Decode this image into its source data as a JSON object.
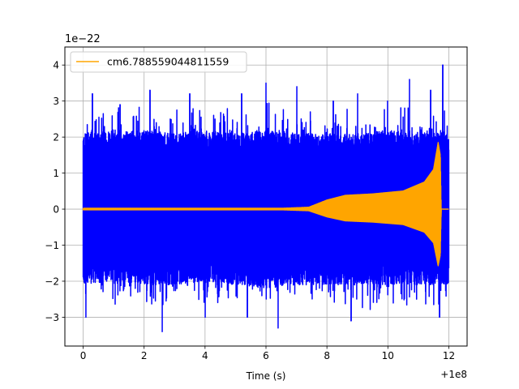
{
  "chart_data": {
    "type": "line",
    "title": "",
    "xlabel": "Time (s)",
    "ylabel": "",
    "x_offset_label": "+1e8",
    "y_scale_label": "1e−22",
    "xlim": [
      -0.6,
      12.6
    ],
    "ylim": [
      -3.8,
      4.5
    ],
    "x_ticks": [
      0,
      2,
      4,
      6,
      8,
      10,
      12
    ],
    "x_tick_labels": [
      "0",
      "2",
      "4",
      "6",
      "8",
      "10",
      "12"
    ],
    "y_ticks": [
      -3,
      -2,
      -1,
      0,
      1,
      2,
      3,
      4
    ],
    "y_tick_labels": [
      "−3",
      "−2",
      "−1",
      "0",
      "1",
      "2",
      "3",
      "4"
    ],
    "grid": true,
    "legend_position": "top-left",
    "series": [
      {
        "name": "",
        "color": "#0000ff",
        "style": "noisy strain data",
        "x_range": [
          0,
          12
        ],
        "envelope_upper": [
          [
            0,
            2.1
          ],
          [
            1,
            2.2
          ],
          [
            2,
            2.2
          ],
          [
            3,
            2.1
          ],
          [
            4,
            2.2
          ],
          [
            5,
            2.1
          ],
          [
            6,
            2.2
          ],
          [
            7,
            2.1
          ],
          [
            8,
            2.1
          ],
          [
            9,
            2.1
          ],
          [
            10,
            2.2
          ],
          [
            11,
            2.1
          ],
          [
            12,
            2.2
          ]
        ],
        "envelope_lower": [
          [
            0,
            -2.1
          ],
          [
            1,
            -2.0
          ],
          [
            2,
            -2.1
          ],
          [
            3,
            -2.1
          ],
          [
            4,
            -2.0
          ],
          [
            5,
            -2.1
          ],
          [
            6,
            -2.2
          ],
          [
            7,
            -2.1
          ],
          [
            8,
            -2.1
          ],
          [
            9,
            -2.1
          ],
          [
            10,
            -2.1
          ],
          [
            11,
            -2.1
          ],
          [
            12,
            -2.1
          ]
        ],
        "spikes": [
          [
            0.1,
            -3.0
          ],
          [
            0.3,
            3.2
          ],
          [
            1.2,
            2.9
          ],
          [
            2.2,
            3.3
          ],
          [
            2.6,
            -3.4
          ],
          [
            3.5,
            3.2
          ],
          [
            4.0,
            -3.0
          ],
          [
            5.2,
            3.2
          ],
          [
            5.4,
            -3.0
          ],
          [
            6.0,
            3.5
          ],
          [
            6.4,
            -3.3
          ],
          [
            7.0,
            3.4
          ],
          [
            8.2,
            3.0
          ],
          [
            8.8,
            -3.1
          ],
          [
            9.0,
            3.2
          ],
          [
            10.0,
            3.0
          ],
          [
            10.7,
            3.6
          ],
          [
            11.4,
            3.3
          ],
          [
            11.8,
            4.0
          ],
          [
            11.7,
            -3.0
          ]
        ]
      },
      {
        "name": "cm6.788559044811559",
        "color": "#ffa500",
        "style": "chirp template",
        "x_range": [
          0,
          11.8
        ],
        "amplitude_envelope": [
          [
            0,
            0.02
          ],
          [
            6.5,
            0.02
          ],
          [
            7.4,
            0.05
          ],
          [
            8.0,
            0.25
          ],
          [
            8.6,
            0.38
          ],
          [
            9.5,
            0.42
          ],
          [
            10.5,
            0.5
          ],
          [
            11.2,
            0.75
          ],
          [
            11.5,
            1.1
          ],
          [
            11.65,
            1.85
          ],
          [
            11.72,
            1.5
          ],
          [
            11.75,
            0.0
          ],
          [
            12.0,
            0.0
          ]
        ]
      }
    ]
  }
}
